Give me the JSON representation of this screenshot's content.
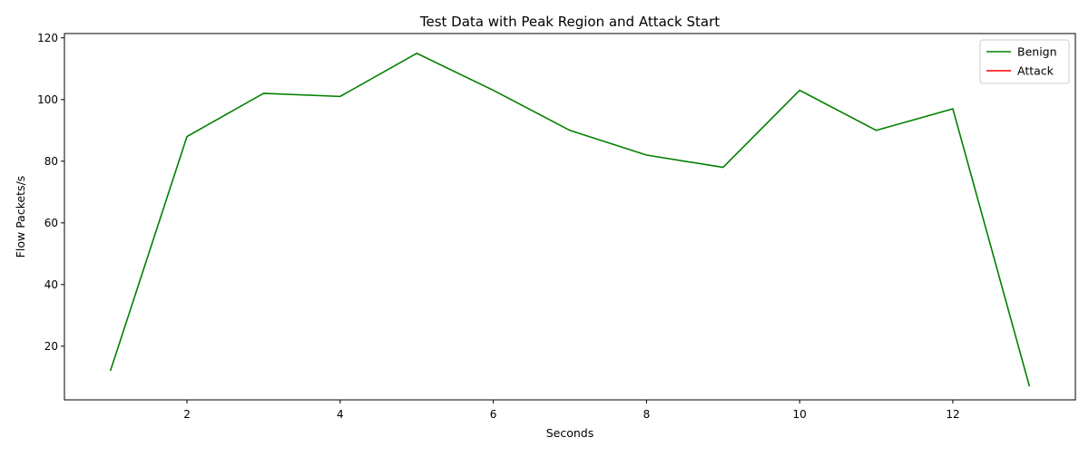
{
  "chart_data": {
    "type": "line",
    "title": "Test Data with Peak Region and Attack Start",
    "xlabel": "Seconds",
    "ylabel": "Flow Packets/s",
    "xlim": [
      0.4,
      13.6
    ],
    "ylim": [
      2.6,
      121.4
    ],
    "xticks": [
      2,
      4,
      6,
      8,
      10,
      12
    ],
    "yticks": [
      20,
      40,
      60,
      80,
      100,
      120
    ],
    "grid": false,
    "legend_position": "top-right",
    "series": [
      {
        "name": "Benign",
        "color": "#008000",
        "x": [
          1,
          2,
          3,
          4,
          5,
          6,
          7,
          8,
          9,
          10,
          11,
          12,
          13
        ],
        "y": [
          12,
          88,
          102,
          101,
          115,
          103,
          90,
          82,
          78,
          103,
          90,
          97,
          7
        ]
      },
      {
        "name": "Attack",
        "color": "#ff0000",
        "x": [],
        "y": []
      }
    ]
  }
}
